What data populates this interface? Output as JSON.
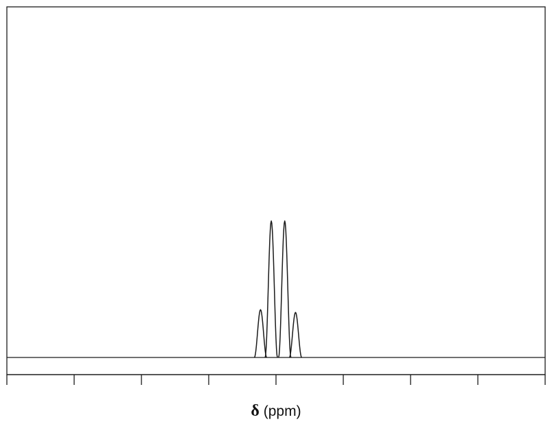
{
  "chart_data": {
    "type": "line",
    "title": "",
    "xlabel_symbol": "δ",
    "xlabel_unit": "(ppm)",
    "ylabel": "",
    "grid": false,
    "x_ticks_count": 9,
    "xlim": [
      0,
      8
    ],
    "ylim": [
      0,
      1
    ],
    "series": [
      {
        "multiplicity": "quartet",
        "peaks": [
          {
            "x": 3.77,
            "intensity": 0.35
          },
          {
            "x": 3.93,
            "intensity": 1.0
          },
          {
            "x": 4.13,
            "intensity": 1.0
          },
          {
            "x": 4.29,
            "intensity": 0.33
          }
        ]
      }
    ]
  }
}
